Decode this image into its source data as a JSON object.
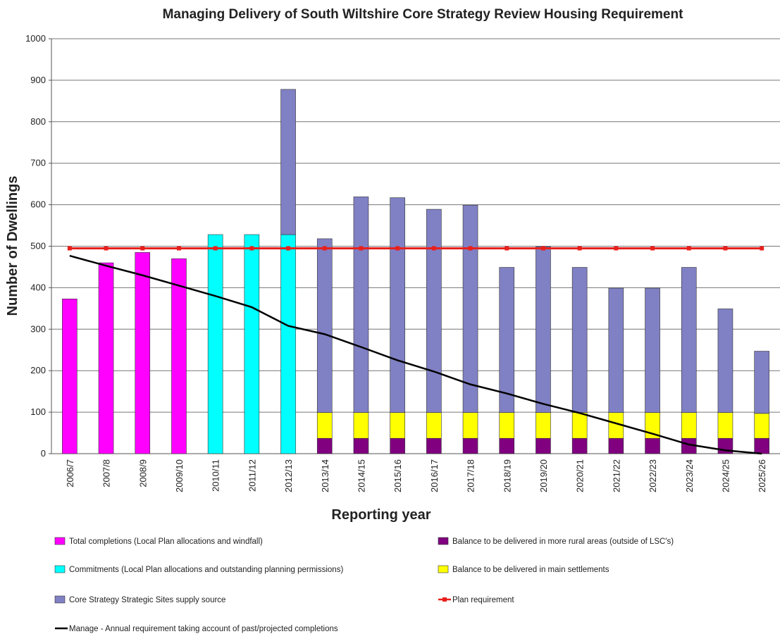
{
  "chart_data": {
    "type": "bar",
    "title": "Managing Delivery of  South Wiltshire Core Strategy Review Housing Requirement",
    "y_label": "Number of Dwellings",
    "x_label": "Reporting year",
    "categories": [
      "2006/7",
      "2007/8",
      "2008/9",
      "2009/10",
      "2010/11",
      "2011/12",
      "2012/13",
      "2013/14",
      "2014/15",
      "2015/16",
      "2016/17",
      "2017/18",
      "2018/19",
      "2019/20",
      "2020/21",
      "2021/22",
      "2022/23",
      "2023/24",
      "2024/25",
      "2025/26"
    ],
    "ylim": [
      0,
      1000
    ],
    "yticks": [
      0,
      100,
      200,
      300,
      400,
      500,
      600,
      700,
      800,
      900,
      1000
    ],
    "grid": true,
    "stacked": true,
    "series": [
      {
        "name": "Total completions (Local Plan allocations and windfall)",
        "type": "bar",
        "color": "#ff00ff",
        "values": [
          373,
          460,
          485,
          470,
          null,
          null,
          null,
          null,
          null,
          null,
          null,
          null,
          null,
          null,
          null,
          null,
          null,
          null,
          null,
          null
        ]
      },
      {
        "name": "Commitments (Local Plan allocations and outstanding planning permissions)",
        "type": "bar",
        "color": "#00ffff",
        "values": [
          null,
          null,
          null,
          null,
          528,
          528,
          528,
          null,
          null,
          null,
          null,
          null,
          null,
          null,
          null,
          null,
          null,
          null,
          null,
          null
        ]
      },
      {
        "name": "Balance to be delivered in more rural areas (outside of LSC's)",
        "type": "bar",
        "color": "#800080",
        "values": [
          null,
          null,
          null,
          null,
          null,
          null,
          null,
          37,
          37,
          37,
          37,
          37,
          37,
          37,
          37,
          37,
          37,
          37,
          37,
          37
        ]
      },
      {
        "name": "Balance to be delivered in main settlements",
        "type": "bar",
        "color": "#ffff00",
        "values": [
          null,
          null,
          null,
          null,
          null,
          null,
          null,
          62,
          62,
          62,
          62,
          62,
          62,
          62,
          62,
          62,
          62,
          62,
          62,
          60
        ]
      },
      {
        "name": "Core Strategy Strategic Sites supply source",
        "type": "bar",
        "color": "#8080c4",
        "values": [
          null,
          null,
          null,
          null,
          null,
          null,
          350,
          419,
          520,
          518,
          490,
          500,
          350,
          400,
          350,
          300,
          300,
          350,
          250,
          150
        ]
      },
      {
        "name": "Plan requirement",
        "type": "line",
        "color": "#e8201c",
        "values": [
          495,
          495,
          495,
          495,
          495,
          495,
          495,
          495,
          495,
          495,
          495,
          495,
          495,
          495,
          495,
          495,
          495,
          495,
          495,
          495
        ]
      },
      {
        "name": "Manage - Annual requirement taking account of past/projected completions",
        "type": "line",
        "color": "#000000",
        "values": [
          477,
          453,
          430,
          405,
          380,
          353,
          308,
          288,
          257,
          225,
          198,
          167,
          145,
          120,
          98,
          73,
          48,
          22,
          8,
          0
        ]
      }
    ]
  }
}
